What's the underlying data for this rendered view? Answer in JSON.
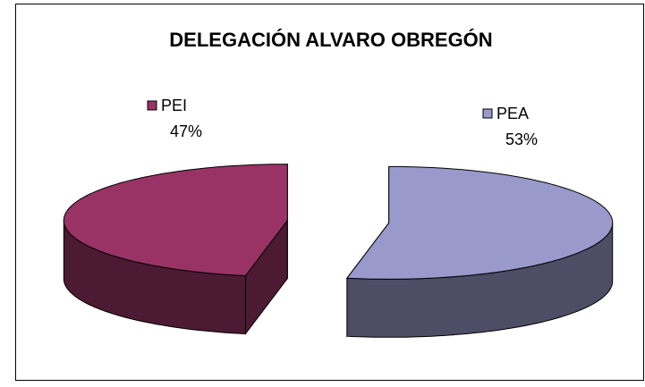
{
  "chart_data": {
    "type": "pie3d",
    "title": "DELEGACIÓN ALVARO OBREGÓN",
    "categories": [
      "PEA",
      "PEI"
    ],
    "values": [
      53,
      47
    ],
    "value_labels": [
      "53%",
      "47%"
    ],
    "colors": [
      "#9999cc",
      "#993366"
    ]
  }
}
